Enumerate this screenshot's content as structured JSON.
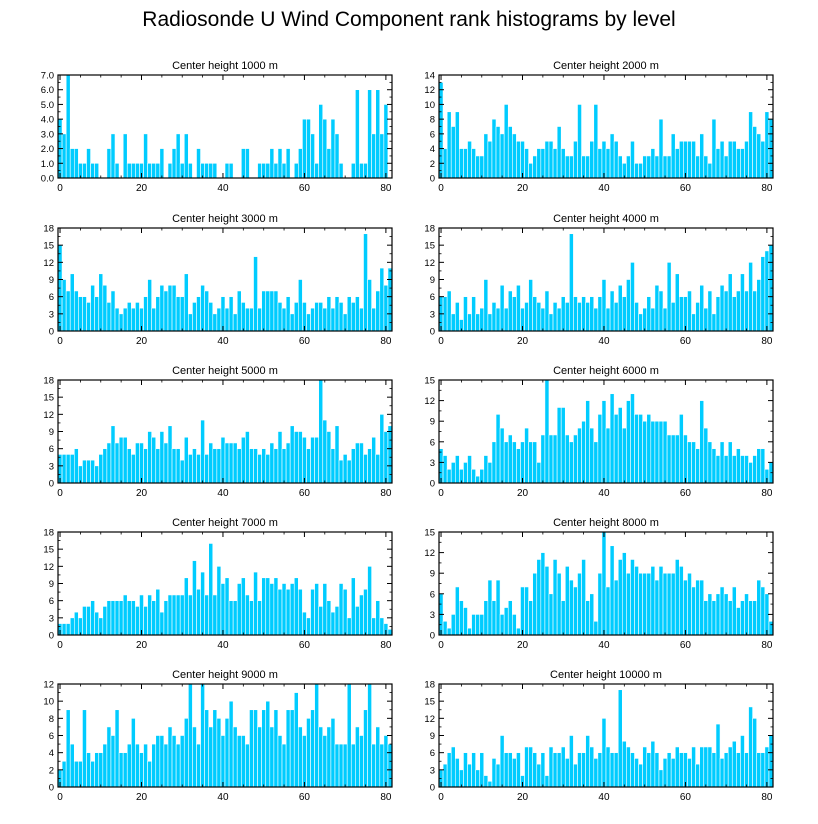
{
  "title": "Radiosonde U Wind Component rank histograms by level",
  "colors": {
    "bar": "#00ccff",
    "bar_edge": "#ffffff",
    "axis": "#000000"
  },
  "chart_data": [
    {
      "type": "bar",
      "title": "Center height 1000 m",
      "xlim": [
        -0.5,
        81.5
      ],
      "xticks": [
        0,
        20,
        40,
        60,
        80
      ],
      "ylim": [
        0,
        7
      ],
      "yticks": [
        "0.0",
        "1.0",
        "2.0",
        "3.0",
        "4.0",
        "5.0",
        "6.0",
        "7.0"
      ],
      "values": [
        4,
        3,
        7,
        2,
        2,
        1,
        1,
        2,
        1,
        1,
        0,
        0,
        2,
        3,
        1,
        0,
        3,
        1,
        1,
        1,
        1,
        3,
        1,
        1,
        1,
        2,
        0,
        1,
        2,
        3,
        1,
        3,
        1,
        0,
        2,
        1,
        1,
        1,
        1,
        0,
        0,
        1,
        1,
        0,
        0,
        2,
        2,
        0,
        0,
        1,
        1,
        1,
        2,
        1,
        2,
        1,
        2,
        0,
        1,
        2,
        4,
        4,
        3,
        1,
        5,
        4,
        2,
        4,
        3,
        1,
        0,
        0,
        1,
        6,
        1,
        1,
        6,
        3,
        6,
        3,
        5
      ]
    },
    {
      "type": "bar",
      "title": "Center height 2000 m",
      "xlim": [
        -0.5,
        81.5
      ],
      "xticks": [
        0,
        20,
        40,
        60,
        80
      ],
      "ylim": [
        0,
        14
      ],
      "yticks": [
        "0",
        "2",
        "4",
        "6",
        "8",
        "10",
        "12",
        "14"
      ],
      "values": [
        13,
        4,
        9,
        7,
        9,
        4,
        4,
        5,
        4,
        3,
        3,
        6,
        5,
        8,
        7,
        6,
        10,
        7,
        6,
        5,
        5,
        4,
        2,
        3,
        4,
        4,
        5,
        5,
        4,
        7,
        4,
        3,
        3,
        5,
        10,
        3,
        3,
        5,
        10,
        4,
        5,
        4,
        6,
        5,
        3,
        2,
        3,
        5,
        2,
        2,
        3,
        3,
        4,
        3,
        8,
        3,
        3,
        6,
        4,
        5,
        5,
        5,
        5,
        3,
        6,
        3,
        2,
        8,
        4,
        5,
        3,
        5,
        5,
        4,
        4,
        5,
        9,
        7,
        6,
        5,
        9,
        8
      ]
    },
    {
      "type": "bar",
      "title": "Center height 3000 m",
      "xlim": [
        -0.5,
        81.5
      ],
      "xticks": [
        0,
        20,
        40,
        60,
        80
      ],
      "ylim": [
        0,
        18
      ],
      "yticks": [
        "0",
        "3",
        "6",
        "9",
        "12",
        "15",
        "18"
      ],
      "values": [
        15,
        9,
        7,
        10,
        7,
        6,
        6,
        5,
        8,
        6,
        10,
        8,
        5,
        7,
        4,
        3,
        4,
        5,
        4,
        5,
        4,
        6,
        9,
        4,
        6,
        8,
        7,
        8,
        8,
        6,
        6,
        10,
        3,
        5,
        6,
        8,
        7,
        5,
        3,
        4,
        6,
        4,
        6,
        3,
        7,
        5,
        4,
        4,
        13,
        4,
        7,
        7,
        7,
        7,
        5,
        4,
        6,
        3,
        5,
        9,
        5,
        3,
        4,
        5,
        5,
        4,
        6,
        4,
        6,
        5,
        3,
        6,
        5,
        6,
        4,
        17,
        9,
        4,
        7,
        11,
        8,
        11
      ]
    },
    {
      "type": "bar",
      "title": "Center height 4000 m",
      "xlim": [
        -0.5,
        81.5
      ],
      "xticks": [
        0,
        20,
        40,
        60,
        80
      ],
      "ylim": [
        0,
        18
      ],
      "yticks": [
        "0",
        "3",
        "6",
        "9",
        "12",
        "15",
        "18"
      ],
      "values": [
        6,
        6,
        7,
        3,
        5,
        2,
        6,
        3,
        6,
        3,
        4,
        9,
        3,
        5,
        4,
        8,
        4,
        7,
        6,
        8,
        4,
        5,
        9,
        6,
        5,
        4,
        7,
        3,
        5,
        4,
        6,
        5,
        17,
        6,
        5,
        6,
        5,
        6,
        4,
        6,
        9,
        4,
        7,
        5,
        8,
        6,
        9,
        12,
        5,
        3,
        4,
        6,
        4,
        8,
        7,
        4,
        12,
        5,
        10,
        6,
        6,
        7,
        3,
        5,
        8,
        4,
        7,
        3,
        6,
        8,
        7,
        10,
        6,
        7,
        10,
        7,
        12,
        7,
        9,
        13,
        14,
        15
      ]
    },
    {
      "type": "bar",
      "title": "Center height 5000 m",
      "xlim": [
        -0.5,
        81.5
      ],
      "xticks": [
        0,
        20,
        40,
        60,
        80
      ],
      "ylim": [
        0,
        18
      ],
      "yticks": [
        "0",
        "3",
        "6",
        "9",
        "12",
        "15",
        "18"
      ],
      "values": [
        5,
        5,
        5,
        5,
        6,
        3,
        4,
        4,
        4,
        3,
        5,
        6,
        7,
        10,
        7,
        8,
        8,
        6,
        5,
        7,
        7,
        6,
        9,
        8,
        6,
        9,
        7,
        10,
        6,
        6,
        4,
        8,
        5,
        6,
        5,
        11,
        5,
        7,
        6,
        6,
        8,
        7,
        7,
        7,
        6,
        8,
        9,
        6,
        6,
        5,
        6,
        5,
        7,
        6,
        9,
        6,
        7,
        10,
        9,
        9,
        8,
        6,
        8,
        8,
        18,
        11,
        9,
        6,
        10,
        4,
        5,
        4,
        6,
        7,
        7,
        5,
        6,
        8,
        5,
        12,
        9,
        10
      ]
    },
    {
      "type": "bar",
      "title": "Center height 6000 m",
      "xlim": [
        -0.5,
        81.5
      ],
      "xticks": [
        0,
        20,
        40,
        60,
        80
      ],
      "ylim": [
        0,
        15
      ],
      "yticks": [
        "0",
        "3",
        "6",
        "9",
        "12",
        "15"
      ],
      "values": [
        5,
        4,
        2,
        3,
        4,
        2,
        3,
        4,
        2,
        1,
        2,
        4,
        3,
        6,
        10,
        8,
        6,
        7,
        6,
        5,
        6,
        8,
        6,
        6,
        3,
        7,
        15,
        7,
        7,
        11,
        11,
        7,
        6,
        7,
        8,
        9,
        12,
        8,
        6,
        10,
        12,
        8,
        13,
        10,
        11,
        8,
        12,
        13,
        10,
        10,
        9,
        10,
        9,
        9,
        9,
        9,
        7,
        7,
        7,
        10,
        7,
        6,
        6,
        5,
        12,
        8,
        6,
        5,
        4,
        6,
        4,
        6,
        4,
        5,
        4,
        4,
        3,
        4,
        5,
        5,
        2,
        3
      ]
    },
    {
      "type": "bar",
      "title": "Center height 7000 m",
      "xlim": [
        -0.5,
        81.5
      ],
      "xticks": [
        0,
        20,
        40,
        60,
        80
      ],
      "ylim": [
        0,
        18
      ],
      "yticks": [
        "0",
        "3",
        "6",
        "9",
        "12",
        "15",
        "18"
      ],
      "values": [
        2,
        2,
        2,
        3,
        4,
        3,
        5,
        5,
        6,
        4,
        3,
        5,
        6,
        6,
        6,
        6,
        7,
        6,
        6,
        5,
        7,
        5,
        7,
        6,
        8,
        4,
        6,
        7,
        7,
        7,
        7,
        10,
        7,
        13,
        8,
        11,
        7,
        16,
        7,
        12,
        9,
        10,
        6,
        6,
        9,
        10,
        7,
        6,
        11,
        6,
        10,
        10,
        9,
        10,
        8,
        9,
        8,
        9,
        10,
        8,
        4,
        3,
        8,
        9,
        5,
        9,
        6,
        4,
        5,
        9,
        8,
        3,
        10,
        5,
        7,
        8,
        12,
        3,
        6,
        3,
        2,
        1
      ]
    },
    {
      "type": "bar",
      "title": "Center height 8000 m",
      "xlim": [
        -0.5,
        81.5
      ],
      "xticks": [
        0,
        20,
        40,
        60,
        80
      ],
      "ylim": [
        0,
        15
      ],
      "yticks": [
        "0",
        "3",
        "6",
        "9",
        "12",
        "15"
      ],
      "values": [
        6,
        2,
        1,
        3,
        7,
        5,
        4,
        1,
        3,
        3,
        3,
        5,
        8,
        5,
        8,
        3,
        4,
        5,
        3,
        1,
        7,
        7,
        5,
        9,
        11,
        12,
        10,
        6,
        11,
        9,
        5,
        10,
        8,
        7,
        9,
        11,
        5,
        6,
        2,
        9,
        15,
        7,
        13,
        8,
        11,
        12,
        9,
        11,
        10,
        9,
        9,
        9,
        10,
        8,
        10,
        9,
        9,
        9,
        11,
        10,
        8,
        9,
        7,
        8,
        8,
        5,
        6,
        5,
        6,
        7,
        6,
        5,
        7,
        4,
        5,
        6,
        5,
        5,
        8,
        7,
        6,
        2
      ]
    },
    {
      "type": "bar",
      "title": "Center height 9000 m",
      "xlim": [
        -0.5,
        81.5
      ],
      "xticks": [
        0,
        20,
        40,
        60,
        80
      ],
      "ylim": [
        0,
        12
      ],
      "yticks": [
        "0",
        "2",
        "4",
        "6",
        "8",
        "10",
        "12"
      ],
      "values": [
        2,
        3,
        9,
        5,
        3,
        3,
        9,
        4,
        3,
        4,
        4,
        5,
        7,
        6,
        9,
        4,
        4,
        5,
        8,
        5,
        4,
        5,
        3,
        5,
        6,
        6,
        5,
        7,
        6,
        5,
        6,
        8,
        12,
        7,
        5,
        12,
        9,
        7,
        9,
        8,
        6,
        8,
        10,
        7,
        6,
        6,
        5,
        9,
        9,
        7,
        9,
        10,
        7,
        9,
        6,
        5,
        9,
        9,
        11,
        7,
        6,
        8,
        9,
        12,
        7,
        6,
        7,
        8,
        5,
        5,
        5,
        12,
        5,
        7,
        6,
        9,
        12,
        5,
        7,
        5,
        6,
        5
      ]
    },
    {
      "type": "bar",
      "title": "Center height 10000 m",
      "xlim": [
        -0.5,
        81.5
      ],
      "xticks": [
        0,
        20,
        40,
        60,
        80
      ],
      "ylim": [
        0,
        18
      ],
      "yticks": [
        "0",
        "3",
        "6",
        "9",
        "12",
        "15",
        "18"
      ],
      "values": [
        3,
        4,
        6,
        7,
        5,
        3,
        6,
        4,
        6,
        3,
        6,
        2,
        1,
        5,
        4,
        9,
        6,
        6,
        5,
        6,
        2,
        7,
        7,
        6,
        4,
        6,
        2,
        7,
        6,
        6,
        7,
        5,
        9,
        4,
        6,
        6,
        9,
        7,
        5,
        6,
        12,
        7,
        6,
        6,
        17,
        8,
        7,
        6,
        5,
        4,
        7,
        6,
        8,
        6,
        3,
        5,
        6,
        5,
        7,
        6,
        6,
        5,
        7,
        4,
        7,
        7,
        7,
        6,
        11,
        5,
        6,
        7,
        8,
        6,
        9,
        6,
        14,
        12,
        6,
        6,
        7,
        9
      ]
    }
  ]
}
